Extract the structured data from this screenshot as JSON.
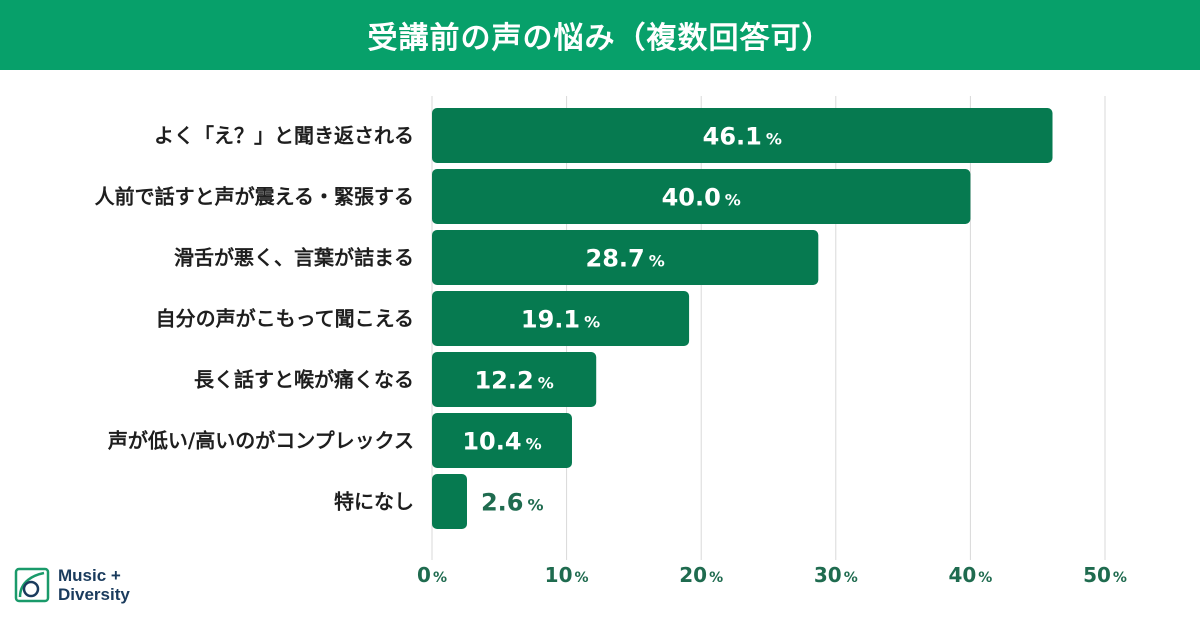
{
  "header": {
    "title": "受講前の声の悩み（複数回答可）"
  },
  "colors": {
    "header_bg": "#07a06a",
    "bar": "#067a50",
    "bar_light": "#0a8a5a",
    "text": "#1e1e1e",
    "accent_text": "#1f6b4f",
    "grid": "#d9d9d9"
  },
  "chart_data": {
    "type": "bar",
    "orientation": "horizontal",
    "title": "受講前の声の悩み（複数回答可）",
    "categories": [
      "よく「え？」と聞き返される",
      "人前で話すと声が震える・緊張する",
      "滑舌が悪く、言葉が詰まる",
      "自分の声がこもって聞こえる",
      "長く話すと喉が痛くなる",
      "声が低い/高いのがコンプレックス",
      "特になし"
    ],
    "values": [
      46.1,
      40.0,
      28.7,
      19.1,
      12.2,
      10.4,
      2.6
    ],
    "value_labels": [
      "46.1",
      "40.0",
      "28.7",
      "19.1",
      "12.2",
      "10.4",
      "2.6"
    ],
    "value_unit": "%",
    "xlim": [
      0,
      50
    ],
    "x_ticks": [
      "0",
      "10",
      "20",
      "30",
      "40",
      "50"
    ],
    "tick_unit": "%",
    "grid": true
  },
  "brand": {
    "line1": "Music +",
    "line2": "Diversity"
  }
}
